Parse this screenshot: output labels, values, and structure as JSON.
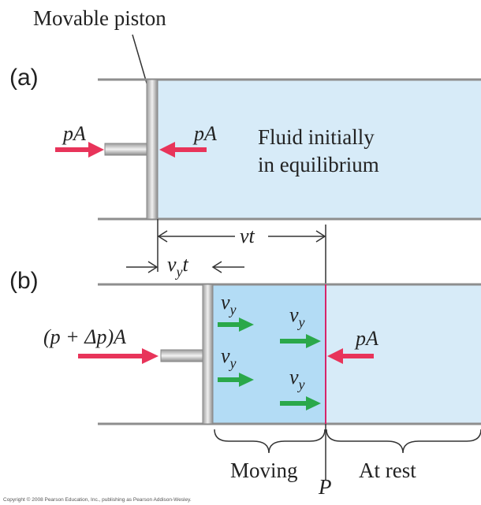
{
  "top_label": "Movable piston",
  "panel_a": {
    "tag": "(a)",
    "force_left": "pA",
    "force_right": "pA",
    "fluid_line1": "Fluid initially",
    "fluid_line2": "in equilibrium"
  },
  "dimensions": {
    "vt": "vt",
    "vyt_v": "v",
    "vyt_sub": "y",
    "vyt_t": "t"
  },
  "panel_b": {
    "tag": "(b)",
    "force_left": "(p + Δp)A",
    "force_right": "pA",
    "velocity_v": "v",
    "velocity_sub": "y",
    "moving_label": "Moving",
    "point_label": "P",
    "rest_label": "At rest"
  },
  "copyright": "Copyright © 2008 Pearson Education, Inc., publishing as Pearson Addison-Wesley.",
  "colors": {
    "fluid_rest": "#d7ebf8",
    "fluid_moving": "#b3dcf5",
    "force_arrow": "#e8345a",
    "velocity_arrow": "#2aa84a",
    "wall": "#8e8e8e",
    "wavefront": "#d6246a"
  }
}
